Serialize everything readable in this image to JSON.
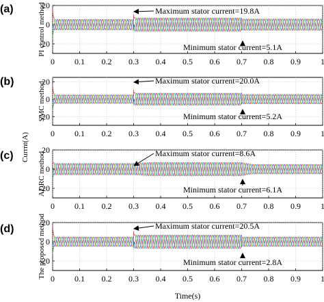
{
  "chart_data": {
    "type": "line",
    "xlabel": "Time(s)",
    "ylabel": "Currnt(A)",
    "xlim": [
      0,
      1
    ],
    "xticks": [
      "0",
      "0.1",
      "0.2",
      "0.3",
      "0.4",
      "0.5",
      "0.6",
      "0.7",
      "0.8",
      "0.9",
      "1"
    ],
    "grid": true,
    "series_colors": [
      "#e8323a",
      "#4a4af0",
      "#2dbb2d"
    ],
    "panels": [
      {
        "letter": "(a)",
        "ylabel": "PI control method",
        "ylim": [
          -30,
          20
        ],
        "yticks": [
          "20",
          "0",
          "-20"
        ],
        "amplitude_before": 5.5,
        "amplitude_mid": 7.0,
        "amplitude_after": 6.0,
        "transient_peak": 19.8,
        "annotations": [
          {
            "text": "Maximum stator current=19.8A",
            "x": 0.3,
            "y": 19.8
          },
          {
            "text": "Minimum stator current=5.1A",
            "x": 0.7,
            "y": 5.1
          }
        ]
      },
      {
        "letter": "(b)",
        "ylabel": "SMC method",
        "ylim": [
          -30,
          25
        ],
        "yticks": [
          "20",
          "0",
          "-20"
        ],
        "amplitude_before": 5.0,
        "amplitude_mid": 7.0,
        "amplitude_after": 5.5,
        "transient_peak": 20.0,
        "annotations": [
          {
            "text": "Maximum stator current=20.0A",
            "x": 0.3,
            "y": 20.0
          },
          {
            "text": "Minimum stator current=5.2A",
            "x": 0.7,
            "y": 5.2
          }
        ]
      },
      {
        "letter": "(c)",
        "ylabel": "ADRC method",
        "ylim": [
          -30,
          20
        ],
        "yticks": [
          "20",
          "0",
          "-20"
        ],
        "amplitude_before": 6.0,
        "amplitude_mid": 7.0,
        "amplitude_after": 5.0,
        "transient_peak": 8.6,
        "annotations": [
          {
            "text": "Maximum stator current=8.6A",
            "x": 0.3,
            "y": 8.6
          },
          {
            "text": "Minimum stator current=6.1A",
            "x": 0.7,
            "y": 6.1
          }
        ]
      },
      {
        "letter": "(d)",
        "ylabel": "The proposed method",
        "ylim": [
          -30,
          20
        ],
        "yticks": [
          "20",
          "0",
          "-20"
        ],
        "amplitude_before": 5.0,
        "amplitude_mid": 7.0,
        "amplitude_after": 5.0,
        "transient_peak": 20.5,
        "annotations": [
          {
            "text": "Maximum stator current=20.5A",
            "x": 0.3,
            "y": 20.5
          },
          {
            "text": "Minimum stator current=2.8A",
            "x": 0.7,
            "y": 2.8
          }
        ]
      }
    ]
  }
}
